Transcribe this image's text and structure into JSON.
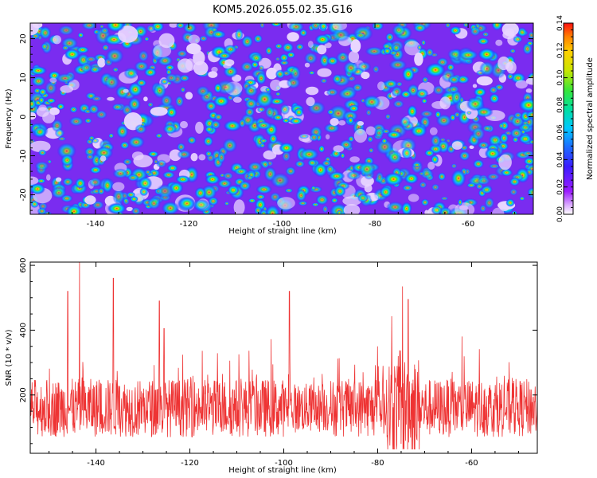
{
  "title": "KOM5.2026.055.02.35.G16",
  "chart_data": [
    {
      "type": "heatmap",
      "title": "KOM5.2026.055.02.35.G16",
      "xlabel": "Height of straight line (km)",
      "ylabel": "Frequency (Hz)",
      "xlim": [
        -154,
        -46
      ],
      "ylim": [
        -25,
        24
      ],
      "xticks": [
        -140,
        -120,
        -100,
        -80,
        -60
      ],
      "yticks": [
        -20,
        -10,
        0,
        10,
        20
      ],
      "colorbar": {
        "label": "Normalized spectral amplitude",
        "range": [
          0,
          0.14
        ],
        "ticks": [
          0,
          0.02,
          0.04,
          0.06,
          0.08,
          0.1,
          0.12,
          0.14
        ],
        "tick_labels": [
          "0.00",
          "0.02",
          "0.04",
          "0.06",
          "0.08",
          "0.10",
          "0.12",
          "0.14"
        ],
        "colors": [
          "#ffffff",
          "#d9a8ff",
          "#9b1cff",
          "#3b1cff",
          "#1e6bff",
          "#00c8ff",
          "#00e0a0",
          "#39e639",
          "#c8e600",
          "#ffd000",
          "#ff8000",
          "#ff1010"
        ]
      },
      "hotspots": [
        {
          "x": -67,
          "y": 12,
          "value": 0.14
        },
        {
          "x": -47,
          "y": 3,
          "value": 0.14
        },
        {
          "x": -76,
          "y": -16,
          "value": 0.13
        },
        {
          "x": -56,
          "y": 16,
          "value": 0.11
        },
        {
          "x": -145,
          "y": 16,
          "value": 0.09
        },
        {
          "x": -113,
          "y": 4,
          "value": 0.09
        },
        {
          "x": -99,
          "y": -8,
          "value": 0.08
        }
      ]
    },
    {
      "type": "line",
      "xlabel": "Height of straight line (km)",
      "ylabel": "SNR (10 * v/v)",
      "xlim": [
        -154,
        -46
      ],
      "ylim": [
        20,
        610
      ],
      "xticks": [
        -140,
        -120,
        -100,
        -80,
        -60
      ],
      "yticks": [
        200,
        400,
        600
      ],
      "color": "#ee3333",
      "series": [
        {
          "name": "SNR",
          "baseline": 160,
          "noise_amplitude": 90
        }
      ],
      "peaks": [
        {
          "x": -143.5,
          "y": 612
        },
        {
          "x": -146,
          "y": 520
        },
        {
          "x": -136.3,
          "y": 560
        },
        {
          "x": -126.5,
          "y": 490
        },
        {
          "x": -98.8,
          "y": 520
        },
        {
          "x": -74.7,
          "y": 535
        },
        {
          "x": -73.5,
          "y": 495
        },
        {
          "x": -125.5,
          "y": 405
        }
      ]
    }
  ]
}
